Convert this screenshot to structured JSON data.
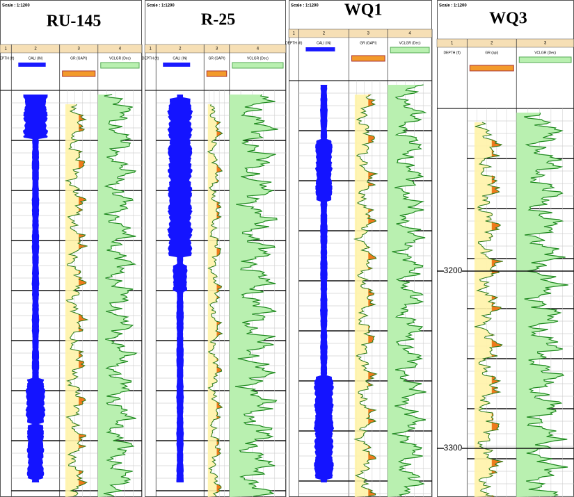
{
  "panels": [
    {
      "title": "RU-145",
      "scale": "Scale : 1:1200",
      "tracks": [
        "1",
        "2",
        "3",
        "4"
      ],
      "curves": [
        "DEPTH (ft)",
        "CALI (IN)",
        "GR (GAPI)",
        "VCLGR (Dec)"
      ],
      "depths": []
    },
    {
      "title": "R-25",
      "scale": "Scale : 1:1200",
      "tracks": [
        "1",
        "2",
        "3",
        "4"
      ],
      "curves": [
        "DEPTH (ft)",
        "CALI (IN)",
        "GR (GAPI)",
        "VCLGR (Dec)"
      ],
      "depths": []
    },
    {
      "title": "WQ1",
      "scale": "Scale : 1:1200",
      "tracks": [
        "1",
        "2",
        "3",
        "4"
      ],
      "curves": [
        "DEPTH (ft)",
        "CALI (IN)",
        "GR (GAPI)",
        "VCLGR (Dec)"
      ],
      "depths": []
    },
    {
      "title": "WQ3",
      "scale": "Scale : 1:1200",
      "tracks": [
        "1",
        "2",
        "3"
      ],
      "curves": [
        "DEPTH (ft)",
        "GR (api)",
        "VCLGR (Dec)"
      ],
      "depths": [
        "3200",
        "3300"
      ]
    }
  ]
}
